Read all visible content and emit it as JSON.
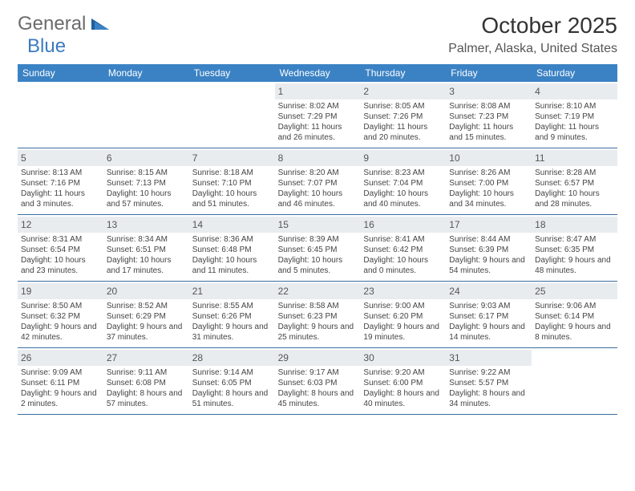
{
  "logo": {
    "text1": "General",
    "text2": "Blue"
  },
  "title": "October 2025",
  "location": "Palmer, Alaska, United States",
  "colors": {
    "header_bg": "#3b82c4",
    "header_text": "#ffffff",
    "daynum_bg": "#e8ecef",
    "border": "#3b6ea0",
    "logo_gray": "#6b6b6b",
    "logo_blue": "#3b7bbf"
  },
  "day_names": [
    "Sunday",
    "Monday",
    "Tuesday",
    "Wednesday",
    "Thursday",
    "Friday",
    "Saturday"
  ],
  "weeks": [
    [
      {
        "n": "",
        "sr": "",
        "ss": "",
        "dl": ""
      },
      {
        "n": "",
        "sr": "",
        "ss": "",
        "dl": ""
      },
      {
        "n": "",
        "sr": "",
        "ss": "",
        "dl": ""
      },
      {
        "n": "1",
        "sr": "Sunrise: 8:02 AM",
        "ss": "Sunset: 7:29 PM",
        "dl": "Daylight: 11 hours and 26 minutes."
      },
      {
        "n": "2",
        "sr": "Sunrise: 8:05 AM",
        "ss": "Sunset: 7:26 PM",
        "dl": "Daylight: 11 hours and 20 minutes."
      },
      {
        "n": "3",
        "sr": "Sunrise: 8:08 AM",
        "ss": "Sunset: 7:23 PM",
        "dl": "Daylight: 11 hours and 15 minutes."
      },
      {
        "n": "4",
        "sr": "Sunrise: 8:10 AM",
        "ss": "Sunset: 7:19 PM",
        "dl": "Daylight: 11 hours and 9 minutes."
      }
    ],
    [
      {
        "n": "5",
        "sr": "Sunrise: 8:13 AM",
        "ss": "Sunset: 7:16 PM",
        "dl": "Daylight: 11 hours and 3 minutes."
      },
      {
        "n": "6",
        "sr": "Sunrise: 8:15 AM",
        "ss": "Sunset: 7:13 PM",
        "dl": "Daylight: 10 hours and 57 minutes."
      },
      {
        "n": "7",
        "sr": "Sunrise: 8:18 AM",
        "ss": "Sunset: 7:10 PM",
        "dl": "Daylight: 10 hours and 51 minutes."
      },
      {
        "n": "8",
        "sr": "Sunrise: 8:20 AM",
        "ss": "Sunset: 7:07 PM",
        "dl": "Daylight: 10 hours and 46 minutes."
      },
      {
        "n": "9",
        "sr": "Sunrise: 8:23 AM",
        "ss": "Sunset: 7:04 PM",
        "dl": "Daylight: 10 hours and 40 minutes."
      },
      {
        "n": "10",
        "sr": "Sunrise: 8:26 AM",
        "ss": "Sunset: 7:00 PM",
        "dl": "Daylight: 10 hours and 34 minutes."
      },
      {
        "n": "11",
        "sr": "Sunrise: 8:28 AM",
        "ss": "Sunset: 6:57 PM",
        "dl": "Daylight: 10 hours and 28 minutes."
      }
    ],
    [
      {
        "n": "12",
        "sr": "Sunrise: 8:31 AM",
        "ss": "Sunset: 6:54 PM",
        "dl": "Daylight: 10 hours and 23 minutes."
      },
      {
        "n": "13",
        "sr": "Sunrise: 8:34 AM",
        "ss": "Sunset: 6:51 PM",
        "dl": "Daylight: 10 hours and 17 minutes."
      },
      {
        "n": "14",
        "sr": "Sunrise: 8:36 AM",
        "ss": "Sunset: 6:48 PM",
        "dl": "Daylight: 10 hours and 11 minutes."
      },
      {
        "n": "15",
        "sr": "Sunrise: 8:39 AM",
        "ss": "Sunset: 6:45 PM",
        "dl": "Daylight: 10 hours and 5 minutes."
      },
      {
        "n": "16",
        "sr": "Sunrise: 8:41 AM",
        "ss": "Sunset: 6:42 PM",
        "dl": "Daylight: 10 hours and 0 minutes."
      },
      {
        "n": "17",
        "sr": "Sunrise: 8:44 AM",
        "ss": "Sunset: 6:39 PM",
        "dl": "Daylight: 9 hours and 54 minutes."
      },
      {
        "n": "18",
        "sr": "Sunrise: 8:47 AM",
        "ss": "Sunset: 6:35 PM",
        "dl": "Daylight: 9 hours and 48 minutes."
      }
    ],
    [
      {
        "n": "19",
        "sr": "Sunrise: 8:50 AM",
        "ss": "Sunset: 6:32 PM",
        "dl": "Daylight: 9 hours and 42 minutes."
      },
      {
        "n": "20",
        "sr": "Sunrise: 8:52 AM",
        "ss": "Sunset: 6:29 PM",
        "dl": "Daylight: 9 hours and 37 minutes."
      },
      {
        "n": "21",
        "sr": "Sunrise: 8:55 AM",
        "ss": "Sunset: 6:26 PM",
        "dl": "Daylight: 9 hours and 31 minutes."
      },
      {
        "n": "22",
        "sr": "Sunrise: 8:58 AM",
        "ss": "Sunset: 6:23 PM",
        "dl": "Daylight: 9 hours and 25 minutes."
      },
      {
        "n": "23",
        "sr": "Sunrise: 9:00 AM",
        "ss": "Sunset: 6:20 PM",
        "dl": "Daylight: 9 hours and 19 minutes."
      },
      {
        "n": "24",
        "sr": "Sunrise: 9:03 AM",
        "ss": "Sunset: 6:17 PM",
        "dl": "Daylight: 9 hours and 14 minutes."
      },
      {
        "n": "25",
        "sr": "Sunrise: 9:06 AM",
        "ss": "Sunset: 6:14 PM",
        "dl": "Daylight: 9 hours and 8 minutes."
      }
    ],
    [
      {
        "n": "26",
        "sr": "Sunrise: 9:09 AM",
        "ss": "Sunset: 6:11 PM",
        "dl": "Daylight: 9 hours and 2 minutes."
      },
      {
        "n": "27",
        "sr": "Sunrise: 9:11 AM",
        "ss": "Sunset: 6:08 PM",
        "dl": "Daylight: 8 hours and 57 minutes."
      },
      {
        "n": "28",
        "sr": "Sunrise: 9:14 AM",
        "ss": "Sunset: 6:05 PM",
        "dl": "Daylight: 8 hours and 51 minutes."
      },
      {
        "n": "29",
        "sr": "Sunrise: 9:17 AM",
        "ss": "Sunset: 6:03 PM",
        "dl": "Daylight: 8 hours and 45 minutes."
      },
      {
        "n": "30",
        "sr": "Sunrise: 9:20 AM",
        "ss": "Sunset: 6:00 PM",
        "dl": "Daylight: 8 hours and 40 minutes."
      },
      {
        "n": "31",
        "sr": "Sunrise: 9:22 AM",
        "ss": "Sunset: 5:57 PM",
        "dl": "Daylight: 8 hours and 34 minutes."
      },
      {
        "n": "",
        "sr": "",
        "ss": "",
        "dl": ""
      }
    ]
  ]
}
